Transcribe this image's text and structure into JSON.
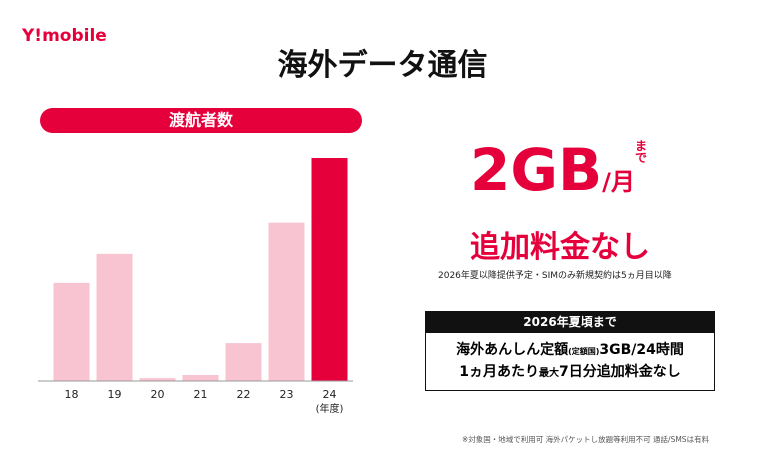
{
  "chart_data": {
    "type": "bar",
    "title": "渡航者数",
    "categories": [
      "18",
      "19",
      "20",
      "21",
      "22",
      "23",
      "24"
    ],
    "values": [
      44,
      57,
      1.3,
      2.7,
      17,
      71,
      100
    ],
    "colors": [
      "#f9c4d2",
      "#f9c4d2",
      "#f9c4d2",
      "#f9c4d2",
      "#f9c4d2",
      "#f9c4d2",
      "#e5003b"
    ],
    "xlabel": "(年度)"
  },
  "slide": {
    "logo": "Y!mobile",
    "title": "海外データ通信",
    "headline": {
      "amount": "2GB",
      "per": "/月",
      "until": "まで",
      "main": "追加料金なし"
    },
    "note": "2026年夏以降提供予定・SIMのみ新規契約は5ヵ月目以降",
    "box": {
      "header": "2026年夏頃まで",
      "line1": [
        "海外あんしん定額",
        "(定額国)",
        "3GB/24時間"
      ],
      "line2": [
        "1ヵ月あたり",
        "最大",
        "7日分追加料金なし"
      ]
    },
    "footnote": "※対象国・地域で利用可 海外パケットし放題等利用不可 通話/SMSは有料"
  }
}
